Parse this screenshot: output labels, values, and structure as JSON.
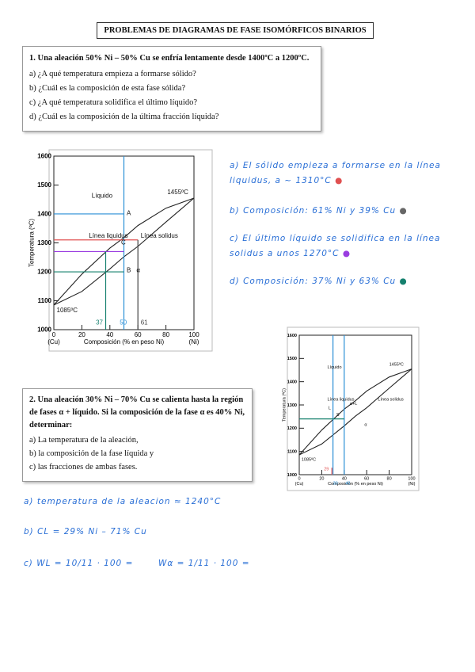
{
  "header": {
    "title": "PROBLEMAS DE DIAGRAMAS DE FASE ISOMÓRFICOS BINARIOS"
  },
  "problem1": {
    "statement": "1. Una aleación 50% Ni – 50% Cu se enfría lentamente desde 1400ºC a 1200ºC.",
    "questions": [
      "a) ¿A qué temperatura empieza a formarse sólido?",
      "b) ¿Cuál es la composición de esta fase sólida?",
      "c) ¿A qué temperatura solidifica el último líquido?",
      "d) ¿Cuál es la composición de la última fracción líquida?"
    ]
  },
  "diagram1": {
    "y_axis_label": "Temperatura (ºC)",
    "x_axis_label": "Composición (% en peso Ni)",
    "y_tick_labels": [
      "1600",
      "1500",
      "1400",
      "1300",
      "1200",
      "1100",
      "1000"
    ],
    "x_tick_labels": [
      "0",
      "20",
      "40",
      "60",
      "80",
      "100"
    ],
    "x_end_labels": [
      "(Cu)",
      "(Ni)"
    ],
    "liquid_label": "Líquido",
    "liquidus_label": "Línea liquidus",
    "solidus_label": "Línea solidus",
    "top_temp": "1455ºC",
    "bottom_temp": "1085ºC",
    "point_labels": [
      "A",
      "B",
      "C",
      "α"
    ],
    "handwritten_x_labels": [
      "37",
      "50",
      "61"
    ]
  },
  "answers1": [
    "a) El sólido empieza a formarse en la línea liquidus, a ~ 1310°C",
    "b) Composición: 61% Ni y 39% Cu",
    "c) El último líquido se solidifica en la línea solidus a unos 1270°C",
    "d) Composición: 37% Ni y 63% Cu"
  ],
  "problem2": {
    "statement": "2. Una aleación 30% Ni – 70% Cu se calienta hasta la región de fases α + líquido. Si la composición de la fase α es 40% Ni, determinar:",
    "questions": [
      "a) La temperatura de la aleación,",
      "b) la composición de la fase líquida y",
      "c) las fracciones de ambas fases."
    ]
  },
  "diagram2": {
    "y_axis_label": "Temperatura (ºC)",
    "x_axis_label": "Composición (% en peso Ni)",
    "y_tick_labels": [
      "1600",
      "1500",
      "1400",
      "1300",
      "1200",
      "1100",
      "1000"
    ],
    "x_tick_labels": [
      "0",
      "20",
      "40",
      "60",
      "80",
      "100"
    ],
    "x_end_labels": [
      "(Cu)",
      "(Ni)"
    ],
    "liquid_label": "Líquido",
    "liquidus_label": "Línea liquidus",
    "solidus_label": "Línea solidus",
    "top_temp": "1455ºC",
    "bottom_temp": "1085ºC",
    "point_labels": [
      "α",
      "α+L",
      "L",
      "S"
    ],
    "handwritten_x_labels": [
      "29",
      "30",
      "40"
    ]
  },
  "answers2": [
    "a) temperatura de la aleacion ≈ 1240°C",
    "b) CL = 29% Ni – 71% Cu",
    "c) WL = 10/11 · 100 =",
    "Wα = 1/11 · 100 ="
  ]
}
